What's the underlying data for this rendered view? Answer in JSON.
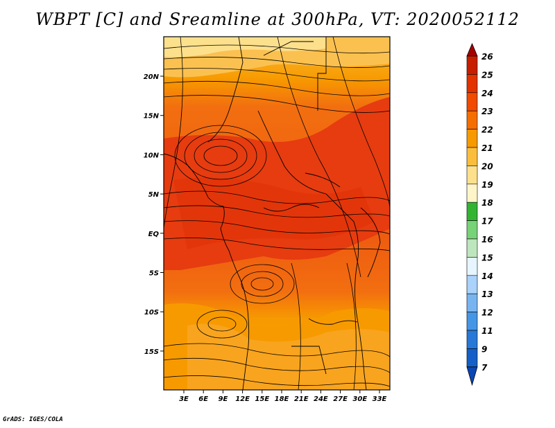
{
  "title": "WBPT [C] and Sreamline at 300hPa, VT: 2020052112",
  "credit": "GrADS: IGES/COLA",
  "lat_labels": [
    "20N",
    "15N",
    "10N",
    "5N",
    "EQ",
    "5S",
    "10S",
    "15S"
  ],
  "lon_labels": [
    "3E",
    "6E",
    "9E",
    "12E",
    "15E",
    "18E",
    "21E",
    "24E",
    "27E",
    "30E",
    "33E"
  ],
  "colorbar": {
    "levels": [
      "26",
      "25",
      "24",
      "23",
      "22",
      "21",
      "20",
      "19",
      "18",
      "17",
      "16",
      "15",
      "14",
      "13",
      "12",
      "11",
      "9",
      "7"
    ],
    "colors": [
      "#a50000",
      "#c81e00",
      "#e23200",
      "#f04b00",
      "#f56e00",
      "#f79a00",
      "#fbbe3c",
      "#fde08c",
      "#fff5c8",
      "#32b432",
      "#78d278",
      "#bee6be",
      "#e6f5ff",
      "#aad2fa",
      "#78b4f0",
      "#4696e6",
      "#2878d7",
      "#1460c8",
      "#0a46b4"
    ]
  },
  "map": {
    "variable": "WBPT [C] at 300hPa with streamlines",
    "lon_range": [
      0.5,
      34.5
    ],
    "lat_range": [
      -20,
      24.5
    ]
  }
}
